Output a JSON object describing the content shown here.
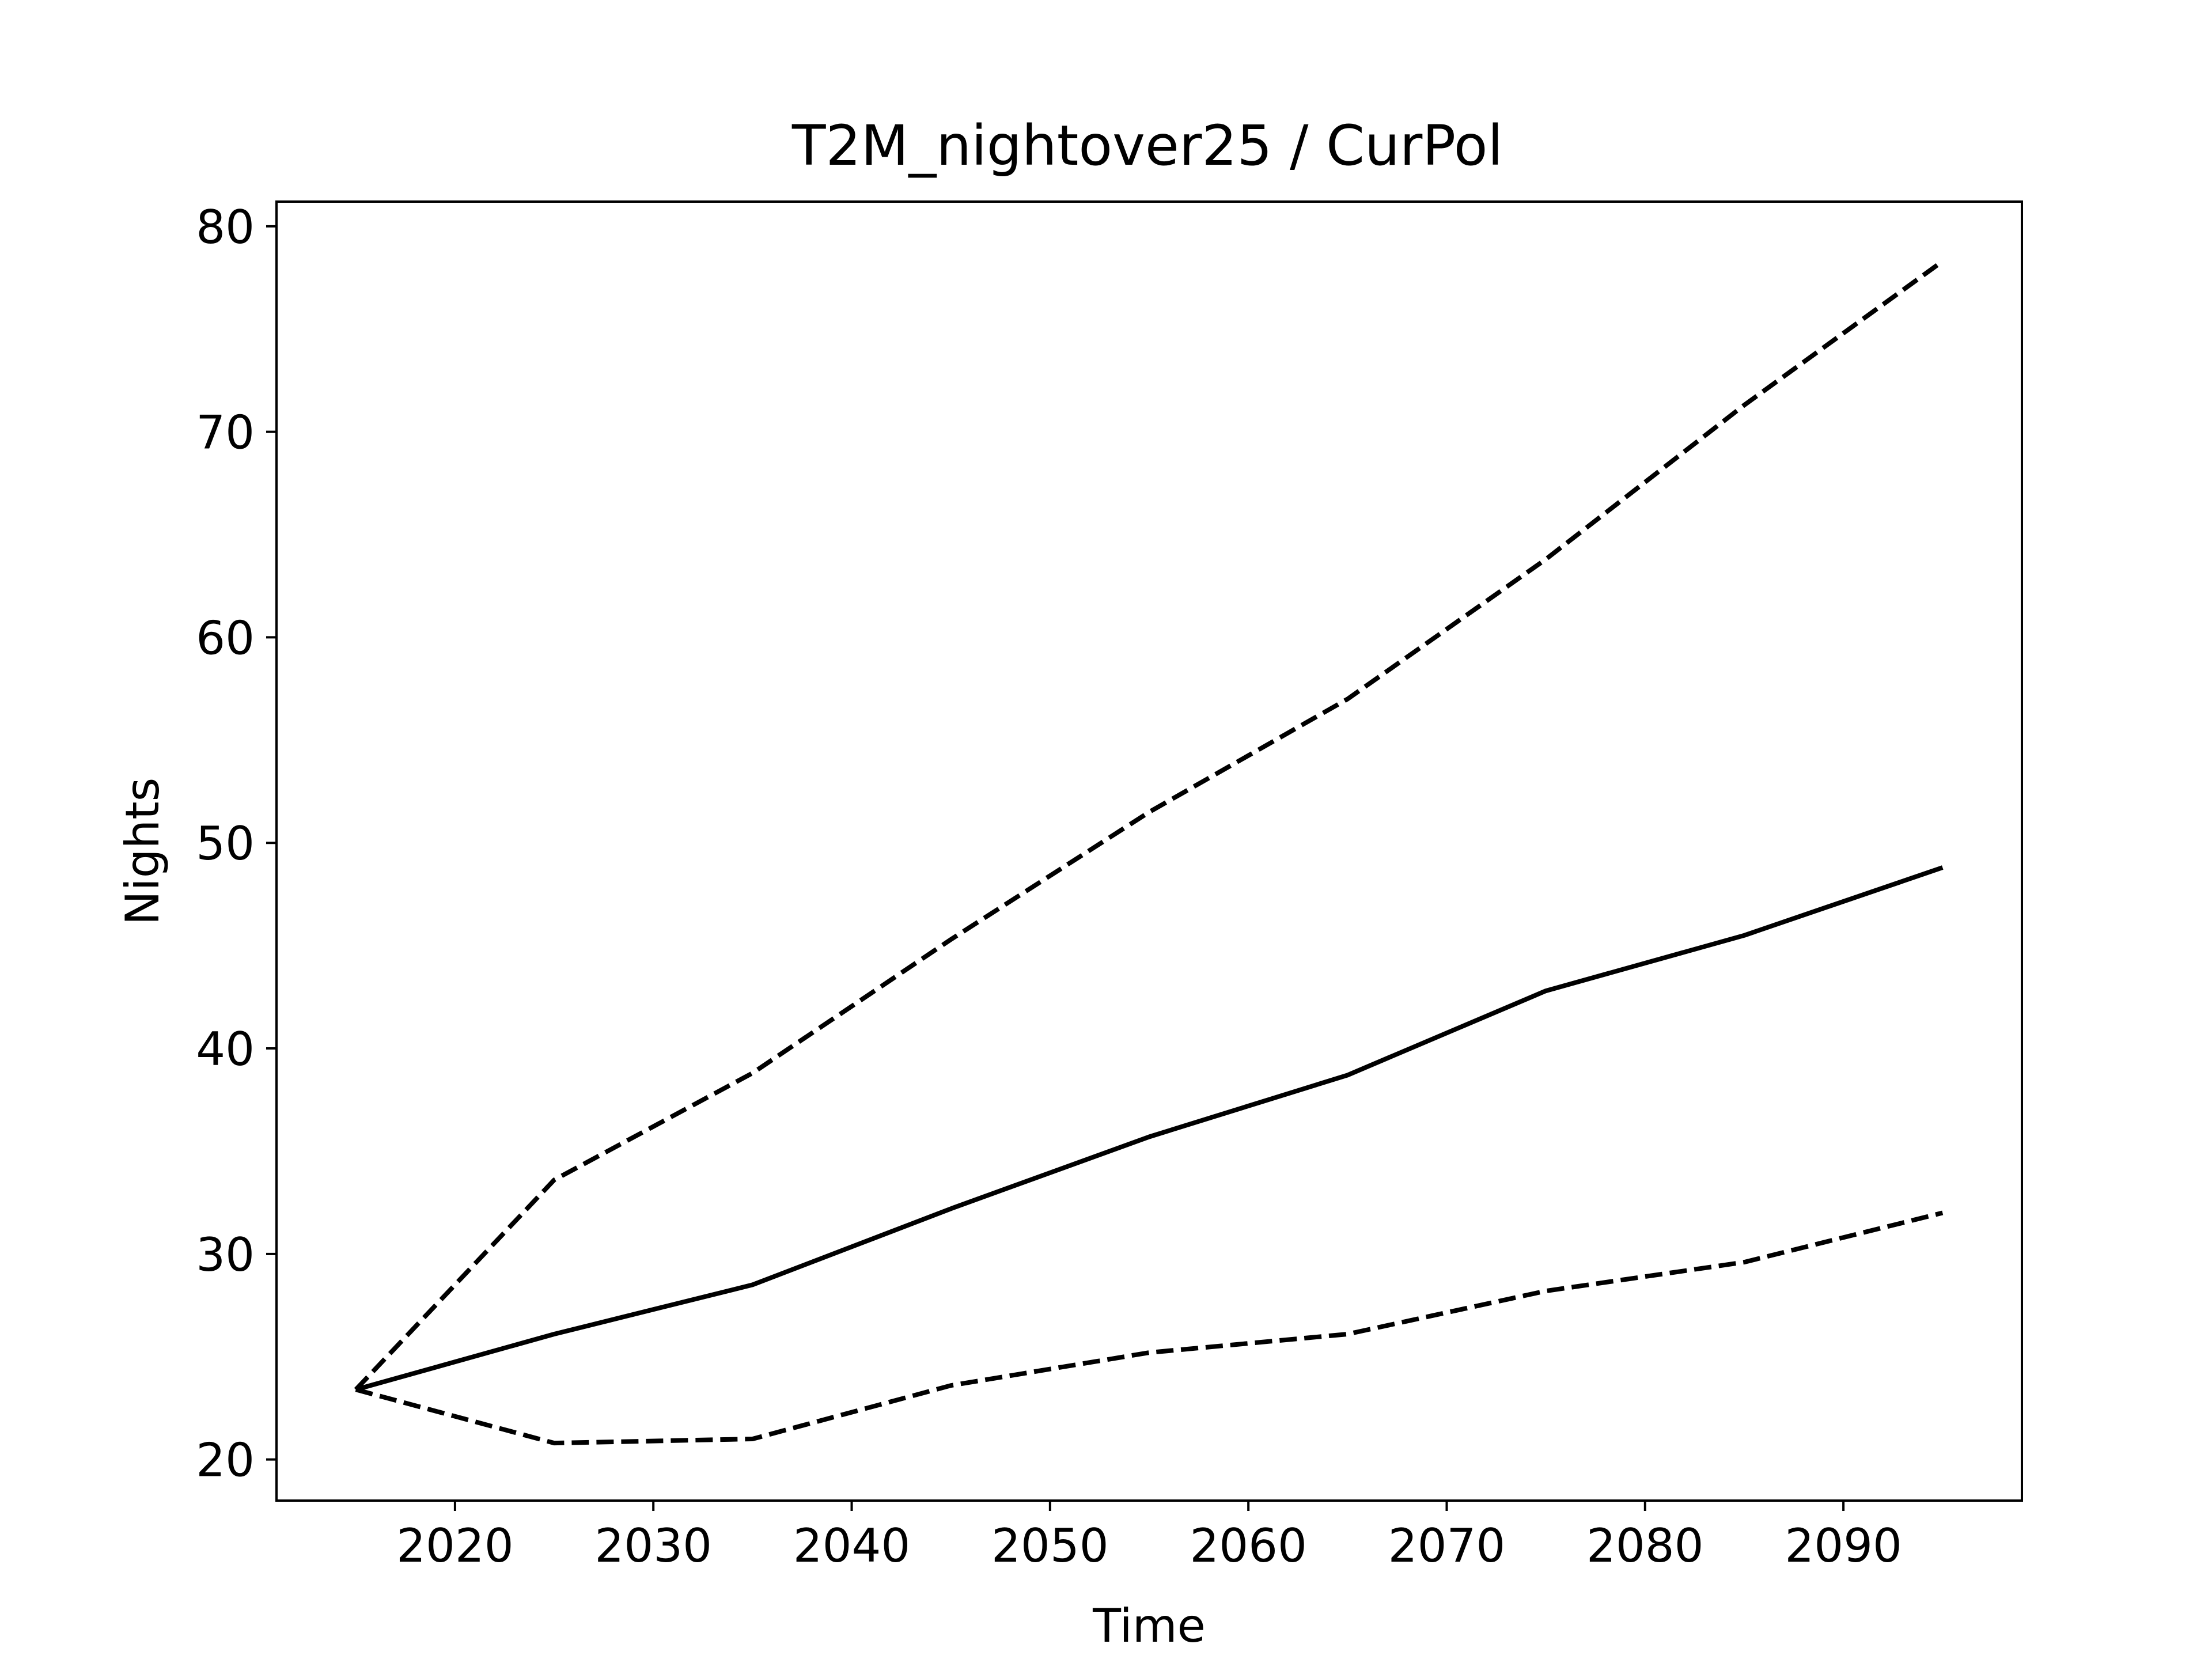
{
  "chart_data": {
    "type": "line",
    "title": "T2M_nightover25 / CurPol",
    "xlabel": "Time",
    "ylabel": "Nights",
    "xlim": [
      2011,
      2099
    ],
    "ylim": [
      18,
      81.2
    ],
    "x_ticks": [
      2020,
      2030,
      2040,
      2050,
      2060,
      2070,
      2080,
      2090
    ],
    "y_ticks": [
      20,
      30,
      40,
      50,
      60,
      70,
      80
    ],
    "grid": false,
    "x": [
      2015,
      2025,
      2035,
      2045,
      2055,
      2065,
      2075,
      2085,
      2095
    ],
    "series": [
      {
        "style": "solid",
        "color": "#000000",
        "values": [
          23.4,
          26.1,
          28.5,
          32.2,
          35.7,
          38.7,
          42.8,
          45.5,
          48.8
        ]
      },
      {
        "style": "dashed",
        "color": "#000000",
        "values": [
          23.4,
          33.6,
          38.8,
          45.3,
          51.5,
          57.0,
          63.8,
          71.3,
          78.3
        ]
      },
      {
        "style": "dashed",
        "color": "#000000",
        "values": [
          23.4,
          20.8,
          21.0,
          23.6,
          25.2,
          26.1,
          28.2,
          29.6,
          32.0
        ]
      }
    ]
  }
}
